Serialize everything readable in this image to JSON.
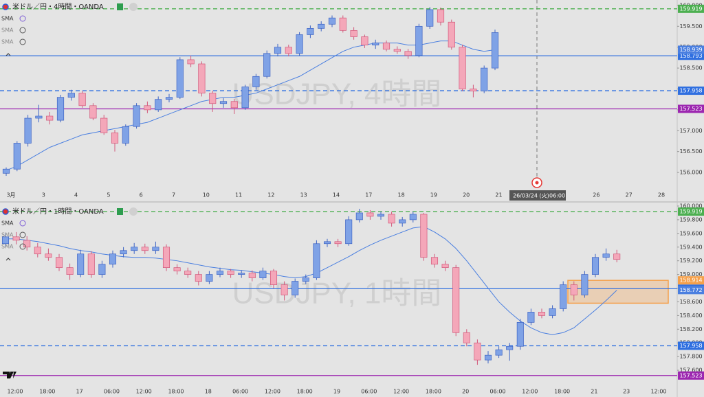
{
  "chart_data": [
    {
      "type": "candlestick",
      "title": "米ドル／円・4時間・OANDA",
      "indicators": [
        "SMA",
        "SMA",
        "SMA"
      ],
      "watermark": "USDJPY, 4時間",
      "ylim": [
        155.59,
        160.13
      ],
      "yticks": [
        {
          "value": 160,
          "label": "160.000"
        },
        {
          "value": 159.5,
          "label": "159.500"
        },
        {
          "value": 159,
          "label": "159.000"
        },
        {
          "value": 158.5,
          "label": "158.500"
        },
        {
          "value": 158,
          "label": "158.000"
        },
        {
          "value": 157.5,
          "label": "157.500"
        },
        {
          "value": 157,
          "label": "157.000"
        },
        {
          "value": 156.5,
          "label": "156.500"
        },
        {
          "value": 156,
          "label": "156.000"
        }
      ],
      "categories": [
        "3月",
        "3",
        "4",
        "5",
        "6",
        "7",
        "10",
        "11",
        "12",
        "13",
        "14",
        "17",
        "18",
        "19",
        "20",
        "21",
        null,
        null,
        "26",
        "27",
        "28"
      ],
      "up_color": "#7fa2e6",
      "down_color": "#f4a7b9",
      "ohlc": [
        [
          155.98,
          156.12,
          155.92,
          156.08
        ],
        [
          156.08,
          156.75,
          156.03,
          156.7
        ],
        [
          156.7,
          157.38,
          156.62,
          157.3
        ],
        [
          157.3,
          157.62,
          157.2,
          157.35
        ],
        [
          157.35,
          157.45,
          157.15,
          157.25
        ],
        [
          157.25,
          157.86,
          157.2,
          157.8
        ],
        [
          157.8,
          157.98,
          157.72,
          157.9
        ],
        [
          157.9,
          157.95,
          157.55,
          157.6
        ],
        [
          157.6,
          157.66,
          157.25,
          157.3
        ],
        [
          157.3,
          157.38,
          156.9,
          156.95
        ],
        [
          156.95,
          157.02,
          156.5,
          156.7
        ],
        [
          156.7,
          157.15,
          156.64,
          157.1
        ],
        [
          157.1,
          157.66,
          157.05,
          157.6
        ],
        [
          157.6,
          157.7,
          157.42,
          157.5
        ],
        [
          157.5,
          157.82,
          157.45,
          157.75
        ],
        [
          157.75,
          157.88,
          157.68,
          157.8
        ],
        [
          157.8,
          158.76,
          157.76,
          158.7
        ],
        [
          158.7,
          158.8,
          158.52,
          158.6
        ],
        [
          158.6,
          158.66,
          157.82,
          157.9
        ],
        [
          157.9,
          157.96,
          157.45,
          157.65
        ],
        [
          157.65,
          157.78,
          157.55,
          157.7
        ],
        [
          157.7,
          157.76,
          157.4,
          157.55
        ],
        [
          157.55,
          158.1,
          157.5,
          158.05
        ],
        [
          158.05,
          158.36,
          157.98,
          158.3
        ],
        [
          158.3,
          158.92,
          158.25,
          158.85
        ],
        [
          158.85,
          159.08,
          158.78,
          159.0
        ],
        [
          159.0,
          159.06,
          158.78,
          158.85
        ],
        [
          158.85,
          159.36,
          158.8,
          159.3
        ],
        [
          159.3,
          159.52,
          159.22,
          159.45
        ],
        [
          159.45,
          159.62,
          159.38,
          159.55
        ],
        [
          159.55,
          159.76,
          159.48,
          159.7
        ],
        [
          159.7,
          159.76,
          159.35,
          159.4
        ],
        [
          159.4,
          159.48,
          159.18,
          159.25
        ],
        [
          159.25,
          159.3,
          158.98,
          159.05
        ],
        [
          159.05,
          159.18,
          158.96,
          159.1
        ],
        [
          159.1,
          159.16,
          158.9,
          158.95
        ],
        [
          158.95,
          159.02,
          158.84,
          158.9
        ],
        [
          158.9,
          158.96,
          158.72,
          158.8
        ],
        [
          158.8,
          159.56,
          158.76,
          159.5
        ],
        [
          159.5,
          159.96,
          159.44,
          159.9
        ],
        [
          159.9,
          159.95,
          159.52,
          159.6
        ],
        [
          159.6,
          159.66,
          158.94,
          159.0
        ],
        [
          159.0,
          159.06,
          157.95,
          158.0
        ],
        [
          158.0,
          158.1,
          157.8,
          157.95
        ],
        [
          157.95,
          158.56,
          157.9,
          158.5
        ],
        [
          158.5,
          159.42,
          158.45,
          159.35
        ]
      ],
      "sma": {
        "color": "#4a7fe0",
        "last": 158.939,
        "values": [
          156.05,
          156.15,
          156.3,
          156.45,
          156.6,
          156.7,
          156.8,
          156.9,
          156.95,
          157.0,
          157.05,
          157.1,
          157.15,
          157.2,
          157.3,
          157.4,
          157.5,
          157.6,
          157.7,
          157.75,
          157.8,
          157.8,
          157.85,
          157.9,
          158.0,
          158.1,
          158.2,
          158.3,
          158.45,
          158.6,
          158.75,
          158.9,
          159.0,
          159.05,
          159.1,
          159.1,
          159.1,
          159.05,
          159.05,
          159.1,
          159.15,
          159.15,
          159.05,
          158.95,
          158.9,
          158.94
        ]
      },
      "levels": [
        {
          "value": 159.919,
          "color": "#4caf50",
          "style": "dashed"
        },
        {
          "value": 158.793,
          "color": "#2f6fe0",
          "style": "solid"
        },
        {
          "value": 157.958,
          "color": "#2f6fe0",
          "style": "dashed"
        },
        {
          "value": 157.523,
          "color": "#9c27b0",
          "style": "solid"
        }
      ],
      "crosshair": {
        "date": "26/03/24 (火)",
        "time": "06:00"
      }
    },
    {
      "type": "candlestick",
      "title": "米ドル／円・1時間・OANDA",
      "indicators": [
        "SMA",
        "SMA",
        "SMA"
      ],
      "watermark": "USDJPY, 1時間",
      "ylim": [
        157.39,
        160.04
      ],
      "yticks": [
        {
          "value": 160,
          "label": "160.000"
        },
        {
          "value": 159.8,
          "label": "159.800"
        },
        {
          "value": 159.6,
          "label": "159.600"
        },
        {
          "value": 159.4,
          "label": "159.400"
        },
        {
          "value": 159.2,
          "label": "159.200"
        },
        {
          "value": 159,
          "label": "159.000"
        },
        {
          "value": 158.8,
          "label": "158.800"
        },
        {
          "value": 158.6,
          "label": "158.600"
        },
        {
          "value": 158.4,
          "label": "158.400"
        },
        {
          "value": 158.2,
          "label": "158.200"
        },
        {
          "value": 158,
          "label": "158.000"
        },
        {
          "value": 157.8,
          "label": "157.800"
        },
        {
          "value": 157.6,
          "label": "157.600"
        }
      ],
      "categories": [
        "12:00",
        "18:00",
        "17",
        "06:00",
        "12:00",
        "18:00",
        "18",
        "06:00",
        "12:00",
        "18:00",
        "19",
        "06:00",
        "12:00",
        "18:00",
        "20",
        "06:00",
        "12:00",
        "18:00",
        "21",
        "23",
        "12:00"
      ],
      "up_color": "#7fa2e6",
      "down_color": "#f4a7b9",
      "ohlc": [
        [
          159.45,
          159.6,
          159.4,
          159.55
        ],
        [
          159.55,
          159.62,
          159.44,
          159.5
        ],
        [
          159.5,
          159.56,
          159.35,
          159.4
        ],
        [
          159.4,
          159.46,
          159.25,
          159.3
        ],
        [
          159.3,
          159.38,
          159.2,
          159.25
        ],
        [
          159.25,
          159.3,
          159.05,
          159.1
        ],
        [
          159.1,
          159.16,
          158.92,
          159.0
        ],
        [
          159.0,
          159.36,
          158.96,
          159.3
        ],
        [
          159.3,
          159.34,
          158.95,
          159.0
        ],
        [
          159.0,
          159.2,
          158.95,
          159.15
        ],
        [
          159.15,
          159.35,
          159.1,
          159.3
        ],
        [
          159.3,
          159.4,
          159.25,
          159.35
        ],
        [
          159.35,
          159.46,
          159.3,
          159.4
        ],
        [
          159.4,
          159.45,
          159.3,
          159.35
        ],
        [
          159.35,
          159.48,
          159.3,
          159.4
        ],
        [
          159.4,
          159.44,
          159.05,
          159.1
        ],
        [
          159.1,
          159.15,
          159.0,
          159.05
        ],
        [
          159.05,
          159.1,
          158.95,
          159.0
        ],
        [
          159.0,
          159.05,
          158.84,
          158.9
        ],
        [
          158.9,
          159.05,
          158.86,
          159.0
        ],
        [
          159.0,
          159.1,
          158.96,
          159.05
        ],
        [
          159.05,
          159.08,
          158.95,
          159.0
        ],
        [
          159.0,
          159.06,
          158.95,
          159.02
        ],
        [
          159.02,
          159.06,
          158.9,
          158.95
        ],
        [
          158.95,
          159.1,
          158.92,
          159.05
        ],
        [
          159.05,
          159.08,
          158.8,
          158.85
        ],
        [
          158.85,
          158.9,
          158.62,
          158.7
        ],
        [
          158.7,
          158.94,
          158.66,
          158.9
        ],
        [
          158.9,
          159.0,
          158.86,
          158.95
        ],
        [
          158.95,
          159.5,
          158.92,
          159.45
        ],
        [
          159.45,
          159.52,
          159.4,
          159.48
        ],
        [
          159.48,
          159.52,
          159.4,
          159.45
        ],
        [
          159.45,
          159.85,
          159.42,
          159.8
        ],
        [
          159.8,
          159.96,
          159.76,
          159.9
        ],
        [
          159.9,
          159.94,
          159.8,
          159.85
        ],
        [
          159.85,
          159.92,
          159.8,
          159.88
        ],
        [
          159.88,
          159.92,
          159.7,
          159.75
        ],
        [
          159.75,
          159.84,
          159.7,
          159.8
        ],
        [
          159.8,
          159.92,
          159.76,
          159.88
        ],
        [
          159.88,
          159.9,
          159.2,
          159.25
        ],
        [
          159.25,
          159.3,
          159.1,
          159.15
        ],
        [
          159.15,
          159.2,
          159.05,
          159.1
        ],
        [
          159.1,
          159.14,
          158.1,
          158.15
        ],
        [
          158.15,
          158.2,
          157.95,
          158.0
        ],
        [
          158.0,
          158.05,
          157.68,
          157.75
        ],
        [
          157.75,
          157.88,
          157.7,
          157.82
        ],
        [
          157.82,
          157.95,
          157.78,
          157.9
        ],
        [
          157.9,
          158.0,
          157.74,
          157.95
        ],
        [
          157.95,
          158.35,
          157.9,
          158.3
        ],
        [
          158.3,
          158.5,
          158.26,
          158.45
        ],
        [
          158.45,
          158.5,
          158.36,
          158.4
        ],
        [
          158.4,
          158.55,
          158.36,
          158.5
        ],
        [
          158.5,
          158.9,
          158.46,
          158.85
        ],
        [
          158.85,
          158.9,
          158.62,
          158.7
        ],
        [
          158.7,
          159.05,
          158.66,
          159.0
        ],
        [
          159.0,
          159.3,
          158.96,
          159.25
        ],
        [
          159.25,
          159.38,
          159.2,
          159.3
        ],
        [
          159.3,
          159.36,
          159.18,
          159.22
        ]
      ],
      "sma": {
        "color": "#4a7fe0",
        "last": 158.772,
        "values": [
          159.52,
          159.52,
          159.5,
          159.48,
          159.45,
          159.42,
          159.38,
          159.35,
          159.33,
          159.3,
          159.28,
          159.26,
          159.25,
          159.25,
          159.24,
          159.22,
          159.2,
          159.17,
          159.14,
          159.11,
          159.09,
          159.07,
          159.06,
          159.04,
          159.02,
          159.0,
          158.97,
          158.95,
          158.97,
          159.02,
          159.1,
          159.18,
          159.26,
          159.35,
          159.43,
          159.5,
          159.56,
          159.62,
          159.68,
          159.7,
          159.62,
          159.52,
          159.38,
          159.2,
          159.0,
          158.8,
          158.6,
          158.45,
          158.32,
          158.22,
          158.15,
          158.12,
          158.15,
          158.22,
          158.35,
          158.48,
          158.62,
          158.77
        ]
      },
      "levels": [
        {
          "value": 159.919,
          "color": "#4caf50",
          "style": "dashed"
        },
        {
          "value": 158.793,
          "color": "#2f6fe0",
          "style": "solid"
        },
        {
          "value": 157.958,
          "color": "#2f6fe0",
          "style": "dashed"
        },
        {
          "value": 157.523,
          "color": "#9c27b0",
          "style": "solid"
        }
      ],
      "zone": {
        "top": 158.914,
        "bottom": 158.58,
        "color": "#f5a04a"
      }
    }
  ]
}
